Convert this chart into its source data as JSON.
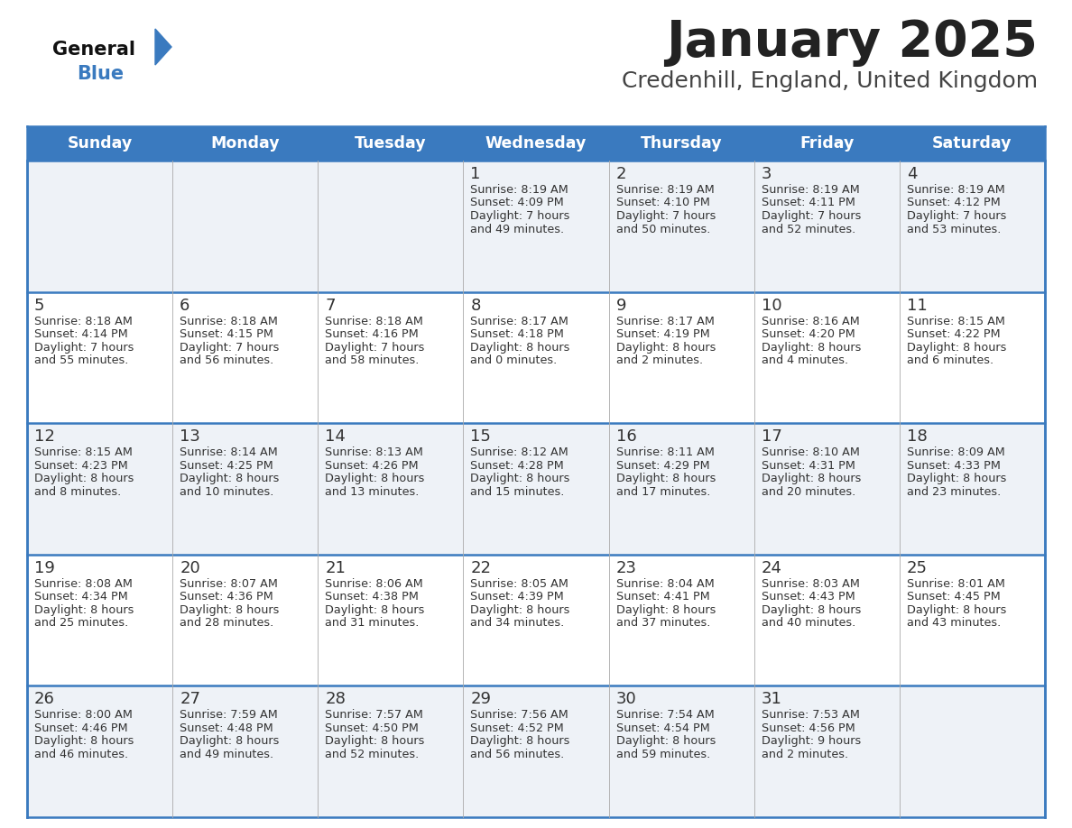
{
  "title": "January 2025",
  "subtitle": "Credenhill, England, United Kingdom",
  "header_bg": "#3a7abf",
  "header_text": "#ffffff",
  "day_names": [
    "Sunday",
    "Monday",
    "Tuesday",
    "Wednesday",
    "Thursday",
    "Friday",
    "Saturday"
  ],
  "row0_bg": "#eef2f7",
  "row1_bg": "#ffffff",
  "border_color": "#3a7abf",
  "cell_line_color": "#aaaaaa",
  "number_color": "#333333",
  "info_color": "#333333",
  "title_color": "#222222",
  "subtitle_color": "#444444",
  "logo_general_color": "#111111",
  "logo_blue_color": "#3a7abf",
  "logo_triangle_color": "#3a7abf",
  "days": [
    {
      "day": 1,
      "col": 3,
      "row": 0,
      "sunrise": "8:19 AM",
      "sunset": "4:09 PM",
      "hours": 7,
      "minutes": 49
    },
    {
      "day": 2,
      "col": 4,
      "row": 0,
      "sunrise": "8:19 AM",
      "sunset": "4:10 PM",
      "hours": 7,
      "minutes": 50
    },
    {
      "day": 3,
      "col": 5,
      "row": 0,
      "sunrise": "8:19 AM",
      "sunset": "4:11 PM",
      "hours": 7,
      "minutes": 52
    },
    {
      "day": 4,
      "col": 6,
      "row": 0,
      "sunrise": "8:19 AM",
      "sunset": "4:12 PM",
      "hours": 7,
      "minutes": 53
    },
    {
      "day": 5,
      "col": 0,
      "row": 1,
      "sunrise": "8:18 AM",
      "sunset": "4:14 PM",
      "hours": 7,
      "minutes": 55
    },
    {
      "day": 6,
      "col": 1,
      "row": 1,
      "sunrise": "8:18 AM",
      "sunset": "4:15 PM",
      "hours": 7,
      "minutes": 56
    },
    {
      "day": 7,
      "col": 2,
      "row": 1,
      "sunrise": "8:18 AM",
      "sunset": "4:16 PM",
      "hours": 7,
      "minutes": 58
    },
    {
      "day": 8,
      "col": 3,
      "row": 1,
      "sunrise": "8:17 AM",
      "sunset": "4:18 PM",
      "hours": 8,
      "minutes": 0
    },
    {
      "day": 9,
      "col": 4,
      "row": 1,
      "sunrise": "8:17 AM",
      "sunset": "4:19 PM",
      "hours": 8,
      "minutes": 2
    },
    {
      "day": 10,
      "col": 5,
      "row": 1,
      "sunrise": "8:16 AM",
      "sunset": "4:20 PM",
      "hours": 8,
      "minutes": 4
    },
    {
      "day": 11,
      "col": 6,
      "row": 1,
      "sunrise": "8:15 AM",
      "sunset": "4:22 PM",
      "hours": 8,
      "minutes": 6
    },
    {
      "day": 12,
      "col": 0,
      "row": 2,
      "sunrise": "8:15 AM",
      "sunset": "4:23 PM",
      "hours": 8,
      "minutes": 8
    },
    {
      "day": 13,
      "col": 1,
      "row": 2,
      "sunrise": "8:14 AM",
      "sunset": "4:25 PM",
      "hours": 8,
      "minutes": 10
    },
    {
      "day": 14,
      "col": 2,
      "row": 2,
      "sunrise": "8:13 AM",
      "sunset": "4:26 PM",
      "hours": 8,
      "minutes": 13
    },
    {
      "day": 15,
      "col": 3,
      "row": 2,
      "sunrise": "8:12 AM",
      "sunset": "4:28 PM",
      "hours": 8,
      "minutes": 15
    },
    {
      "day": 16,
      "col": 4,
      "row": 2,
      "sunrise": "8:11 AM",
      "sunset": "4:29 PM",
      "hours": 8,
      "minutes": 17
    },
    {
      "day": 17,
      "col": 5,
      "row": 2,
      "sunrise": "8:10 AM",
      "sunset": "4:31 PM",
      "hours": 8,
      "minutes": 20
    },
    {
      "day": 18,
      "col": 6,
      "row": 2,
      "sunrise": "8:09 AM",
      "sunset": "4:33 PM",
      "hours": 8,
      "minutes": 23
    },
    {
      "day": 19,
      "col": 0,
      "row": 3,
      "sunrise": "8:08 AM",
      "sunset": "4:34 PM",
      "hours": 8,
      "minutes": 25
    },
    {
      "day": 20,
      "col": 1,
      "row": 3,
      "sunrise": "8:07 AM",
      "sunset": "4:36 PM",
      "hours": 8,
      "minutes": 28
    },
    {
      "day": 21,
      "col": 2,
      "row": 3,
      "sunrise": "8:06 AM",
      "sunset": "4:38 PM",
      "hours": 8,
      "minutes": 31
    },
    {
      "day": 22,
      "col": 3,
      "row": 3,
      "sunrise": "8:05 AM",
      "sunset": "4:39 PM",
      "hours": 8,
      "minutes": 34
    },
    {
      "day": 23,
      "col": 4,
      "row": 3,
      "sunrise": "8:04 AM",
      "sunset": "4:41 PM",
      "hours": 8,
      "minutes": 37
    },
    {
      "day": 24,
      "col": 5,
      "row": 3,
      "sunrise": "8:03 AM",
      "sunset": "4:43 PM",
      "hours": 8,
      "minutes": 40
    },
    {
      "day": 25,
      "col": 6,
      "row": 3,
      "sunrise": "8:01 AM",
      "sunset": "4:45 PM",
      "hours": 8,
      "minutes": 43
    },
    {
      "day": 26,
      "col": 0,
      "row": 4,
      "sunrise": "8:00 AM",
      "sunset": "4:46 PM",
      "hours": 8,
      "minutes": 46
    },
    {
      "day": 27,
      "col": 1,
      "row": 4,
      "sunrise": "7:59 AM",
      "sunset": "4:48 PM",
      "hours": 8,
      "minutes": 49
    },
    {
      "day": 28,
      "col": 2,
      "row": 4,
      "sunrise": "7:57 AM",
      "sunset": "4:50 PM",
      "hours": 8,
      "minutes": 52
    },
    {
      "day": 29,
      "col": 3,
      "row": 4,
      "sunrise": "7:56 AM",
      "sunset": "4:52 PM",
      "hours": 8,
      "minutes": 56
    },
    {
      "day": 30,
      "col": 4,
      "row": 4,
      "sunrise": "7:54 AM",
      "sunset": "4:54 PM",
      "hours": 8,
      "minutes": 59
    },
    {
      "day": 31,
      "col": 5,
      "row": 4,
      "sunrise": "7:53 AM",
      "sunset": "4:56 PM",
      "hours": 9,
      "minutes": 2
    }
  ]
}
